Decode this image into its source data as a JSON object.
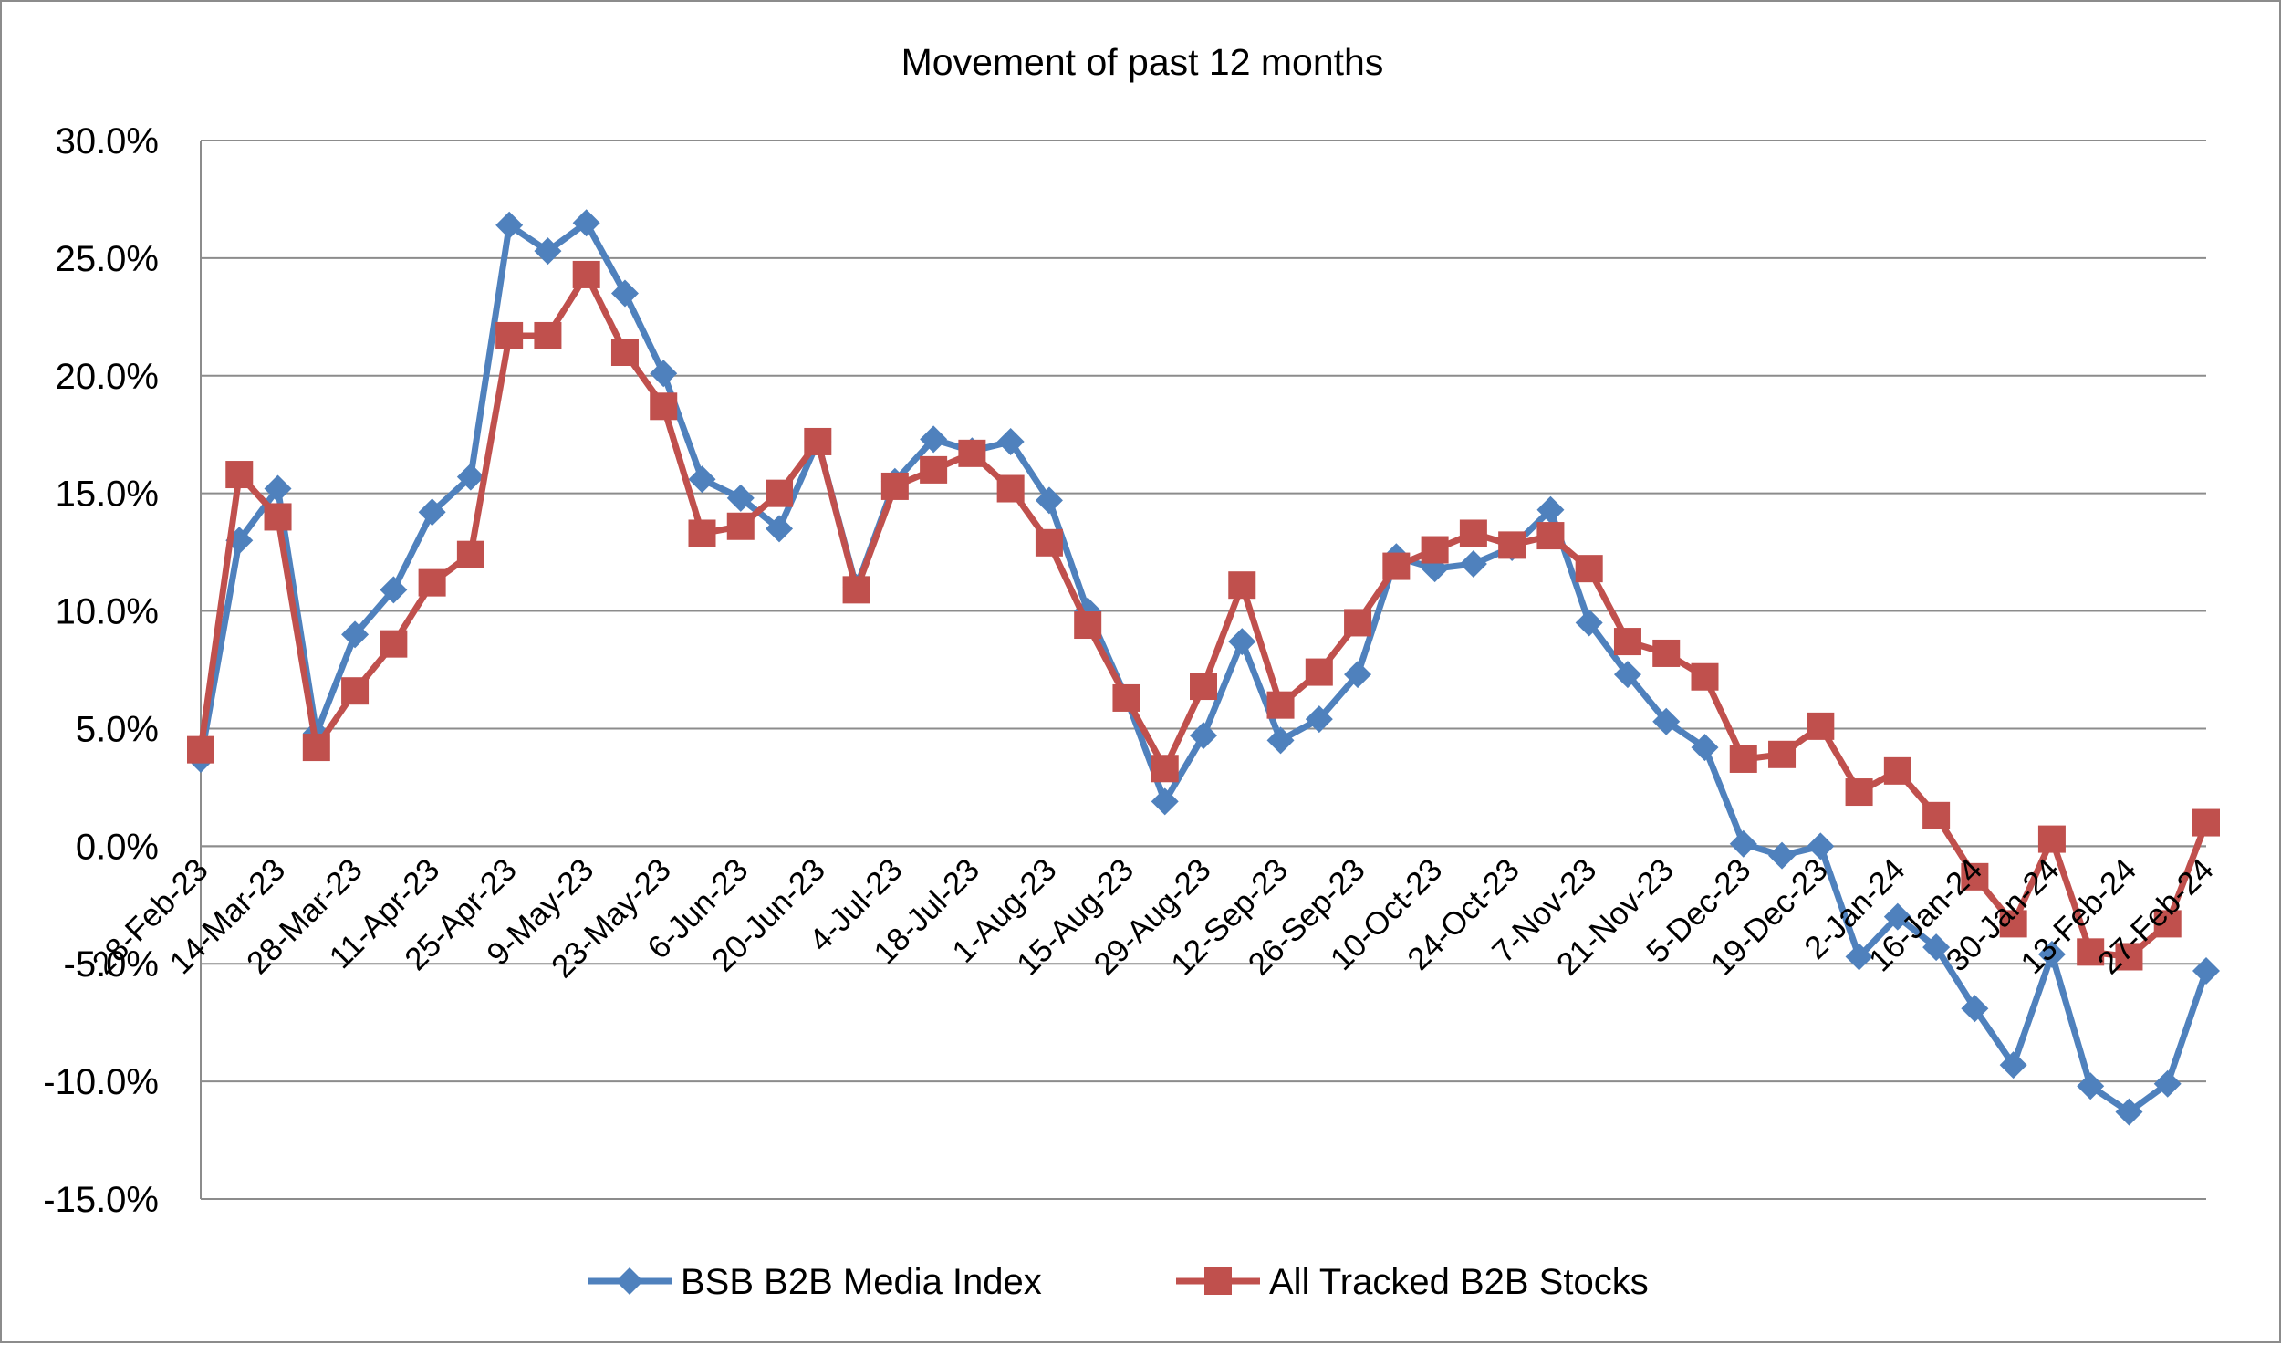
{
  "chart_data": {
    "type": "line",
    "title": "Movement of past 12 months",
    "xlabel": "",
    "ylabel": "",
    "ylim": [
      -15,
      30
    ],
    "y_ticks": [
      "30.0%",
      "25.0%",
      "20.0%",
      "15.0%",
      "10.0%",
      "5.0%",
      "0.0%",
      "-5.0%",
      "-10.0%",
      "-15.0%"
    ],
    "y_tick_values": [
      30,
      25,
      20,
      15,
      10,
      5,
      0,
      -5,
      -10,
      -15
    ],
    "x_tick_labels": [
      "28-Feb-23",
      "14-Mar-23",
      "28-Mar-23",
      "11-Apr-23",
      "25-Apr-23",
      "9-May-23",
      "23-May-23",
      "6-Jun-23",
      "20-Jun-23",
      "4-Jul-23",
      "18-Jul-23",
      "1-Aug-23",
      "15-Aug-23",
      "29-Aug-23",
      "12-Sep-23",
      "26-Sep-23",
      "10-Oct-23",
      "24-Oct-23",
      "7-Nov-23",
      "21-Nov-23",
      "5-Dec-23",
      "19-Dec-23",
      "2-Jan-24",
      "16-Jan-24",
      "30-Jan-24",
      "13-Feb-24",
      "27-Feb-24"
    ],
    "grid": true,
    "legend_position": "bottom",
    "series": [
      {
        "name": "BSB B2B Media Index",
        "color": "#4f81bd",
        "marker": "diamond",
        "values": [
          3.7,
          13.0,
          15.2,
          4.8,
          9.0,
          10.9,
          14.2,
          15.7,
          26.4,
          25.3,
          26.5,
          23.5,
          20.1,
          15.6,
          14.8,
          13.5,
          17.2,
          11.0,
          15.5,
          17.3,
          16.8,
          17.2,
          14.7,
          10.0,
          6.3,
          1.9,
          4.7,
          8.7,
          4.5,
          5.4,
          7.3,
          12.3,
          11.8,
          12.0,
          12.7,
          14.3,
          9.5,
          7.3,
          5.3,
          4.2,
          0.1,
          -0.4,
          0.0,
          -4.7,
          -3.0,
          -4.3,
          -6.9,
          -9.3,
          -4.6,
          -10.2,
          -11.3,
          -10.1,
          -5.3
        ]
      },
      {
        "name": "All Tracked B2B Stocks",
        "color": "#c0504d",
        "marker": "square",
        "values": [
          4.1,
          15.8,
          14.0,
          4.2,
          6.6,
          8.6,
          11.2,
          12.4,
          21.7,
          21.7,
          24.3,
          21.0,
          18.7,
          13.3,
          13.6,
          15.0,
          17.2,
          10.9,
          15.3,
          16.0,
          16.7,
          15.2,
          12.9,
          9.4,
          6.3,
          3.3,
          6.8,
          11.1,
          6.0,
          7.4,
          9.5,
          11.9,
          12.6,
          13.3,
          12.8,
          13.2,
          11.8,
          8.7,
          8.2,
          7.2,
          3.7,
          3.9,
          5.1,
          2.3,
          3.2,
          1.3,
          -1.3,
          -3.3,
          0.3,
          -4.5,
          -4.7,
          -3.3,
          1.0
        ]
      }
    ]
  }
}
